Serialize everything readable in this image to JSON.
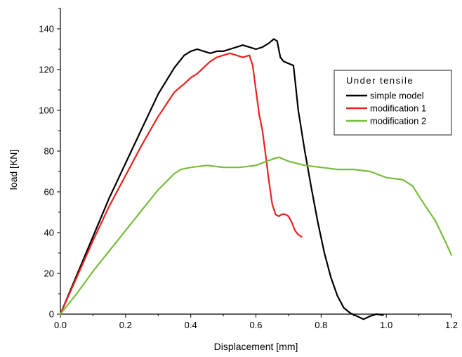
{
  "chart_data": {
    "type": "line",
    "title": "",
    "xlabel": "Displacement [mm]",
    "ylabel": "load [KN]",
    "xlim": [
      0,
      1.2
    ],
    "ylim": [
      0,
      150
    ],
    "xticks": [
      "0.0",
      "0.2",
      "0.4",
      "0.6",
      "0.8",
      "1.0",
      "1.2"
    ],
    "yticks": [
      "0",
      "20",
      "40",
      "60",
      "80",
      "100",
      "120",
      "140"
    ],
    "grid": false,
    "legend": {
      "title": "Under tensile",
      "placement": "right"
    },
    "series": [
      {
        "name": "simple model",
        "color": "#000000",
        "x": [
          0,
          0.05,
          0.1,
          0.15,
          0.2,
          0.25,
          0.3,
          0.35,
          0.38,
          0.4,
          0.42,
          0.44,
          0.46,
          0.48,
          0.5,
          0.52,
          0.54,
          0.56,
          0.58,
          0.6,
          0.62,
          0.64,
          0.655,
          0.665,
          0.675,
          0.685,
          0.7,
          0.715,
          0.72,
          0.73,
          0.75,
          0.77,
          0.79,
          0.81,
          0.83,
          0.85,
          0.87,
          0.89,
          0.91,
          0.93,
          0.95,
          0.97,
          0.99
        ],
        "y": [
          0,
          19,
          38,
          57,
          74,
          91,
          108,
          121,
          127,
          129,
          130,
          129,
          128,
          129,
          129,
          130,
          131,
          132,
          131,
          130,
          131,
          133,
          135,
          134,
          126,
          124,
          123,
          122,
          115,
          100,
          80,
          62,
          45,
          30,
          18,
          9,
          3,
          0.5,
          -1,
          -2.5,
          -1,
          0,
          -0.5
        ]
      },
      {
        "name": "modification 1",
        "color": "#e8231e",
        "x": [
          0,
          0.05,
          0.1,
          0.15,
          0.2,
          0.25,
          0.3,
          0.35,
          0.38,
          0.4,
          0.42,
          0.44,
          0.46,
          0.48,
          0.5,
          0.52,
          0.54,
          0.56,
          0.58,
          0.59,
          0.6,
          0.61,
          0.62,
          0.63,
          0.64,
          0.65,
          0.66,
          0.67,
          0.68,
          0.69,
          0.7,
          0.71,
          0.72,
          0.73,
          0.74
        ],
        "y": [
          0,
          18,
          36,
          53,
          68,
          83,
          97,
          109,
          113,
          116,
          118,
          121,
          124,
          126,
          127,
          128,
          127,
          126,
          127,
          122,
          110,
          98,
          90,
          78,
          65,
          54,
          49,
          48,
          49,
          49,
          48,
          45,
          41,
          39,
          38
        ]
      },
      {
        "name": "modification 2",
        "color": "#77bd3b",
        "x": [
          0,
          0.05,
          0.1,
          0.15,
          0.2,
          0.25,
          0.3,
          0.35,
          0.37,
          0.4,
          0.45,
          0.5,
          0.55,
          0.6,
          0.65,
          0.67,
          0.7,
          0.75,
          0.8,
          0.85,
          0.9,
          0.95,
          1.0,
          1.05,
          1.08,
          1.1,
          1.12,
          1.15,
          1.18,
          1.2
        ],
        "y": [
          0,
          10,
          21,
          31,
          41,
          51,
          61,
          69,
          71,
          72,
          73,
          72,
          72,
          73,
          76,
          77,
          75,
          73,
          72,
          71,
          71,
          70,
          67,
          66,
          63,
          58,
          53,
          46,
          36,
          29
        ]
      }
    ]
  }
}
